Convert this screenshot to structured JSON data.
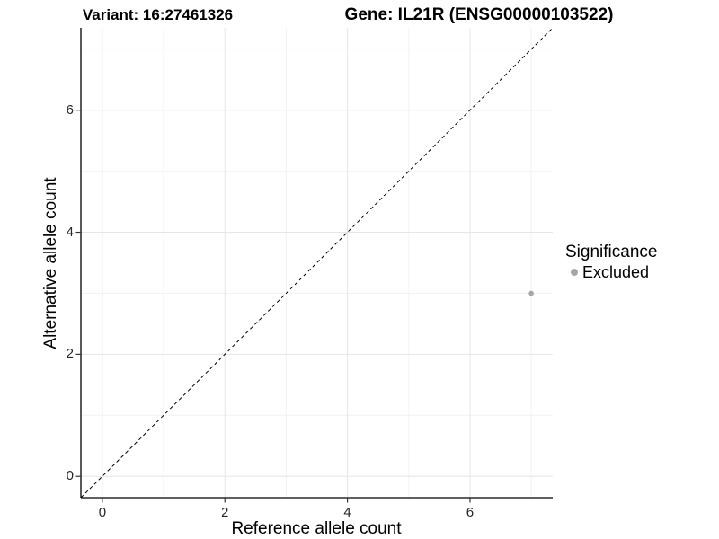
{
  "figure": {
    "title_left": "Variant: 16:27461326",
    "title_right": "Gene: IL21R (ENSG00000103522)"
  },
  "axes": {
    "x_label": "Reference allele count",
    "y_label": "Alternative allele count"
  },
  "legend": {
    "title": "Significance",
    "position": "right",
    "items": [
      {
        "label": "Excluded",
        "color": "#a6a6a6"
      }
    ]
  },
  "chart_data": {
    "type": "scatter",
    "title": "Variant: 16:27461326  /  Gene: IL21R (ENSG00000103522)",
    "xlabel": "Reference allele count",
    "ylabel": "Alternative allele count",
    "xlim": [
      -0.35,
      7.35
    ],
    "ylim": [
      -0.35,
      7.35
    ],
    "x_major_ticks": [
      0,
      2,
      4,
      6
    ],
    "y_major_ticks": [
      0,
      2,
      4,
      6
    ],
    "x_minor_ticks": [
      1,
      3,
      5,
      7
    ],
    "y_minor_ticks": [
      1,
      3,
      5,
      7
    ],
    "grid": true,
    "reference_line": {
      "kind": "identity",
      "equation": "y = x",
      "style": "dashed",
      "color": "#000000"
    },
    "series": [
      {
        "name": "Excluded",
        "color": "#a6a6a6",
        "points": [
          {
            "x": 7,
            "y": 3
          }
        ]
      }
    ],
    "colors": {
      "grid_major": "#e6e6e6",
      "grid_minor": "#f2f2f2",
      "axis_line": "#000000",
      "tick_mark": "#333333",
      "point": "#a6a6a6"
    }
  }
}
